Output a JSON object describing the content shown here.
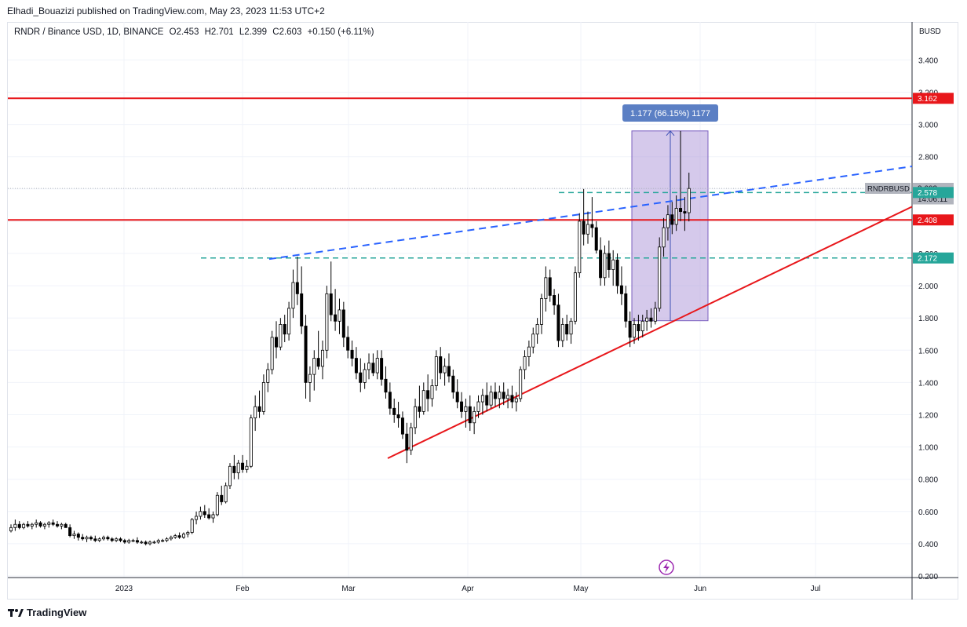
{
  "header": {
    "publish_line": "Elhadi_Bouazizi published on TradingView.com, May 23, 2023 11:53 UTC+2"
  },
  "legend": {
    "symbol": "RNDR / Binance USD, 1D, BINANCE",
    "open": "O2.453",
    "high": "H2.701",
    "low": "L2.399",
    "close": "C2.603",
    "change": "+0.150 (+6.11%)"
  },
  "footer": {
    "brand": "TradingView"
  },
  "colors": {
    "up": "#ffffff",
    "down": "#000000",
    "resistance": "#e8171b",
    "dashed_green": "#26a69a",
    "trend_blue": "#2962ff",
    "measure_fill": "#b39ddb",
    "measure_label_bg": "#5b7fc4"
  },
  "chart_data": {
    "type": "candlestick",
    "currency": "BUSD",
    "ylim": [
      0.2,
      3.5
    ],
    "y_ticks": [
      "3.400",
      "3.200",
      "3.000",
      "2.800",
      "2.600",
      "2.400",
      "2.200",
      "2.000",
      "1.800",
      "1.600",
      "1.400",
      "1.200",
      "1.000",
      "0.800",
      "0.600",
      "0.400",
      "0.200"
    ],
    "x_ticks": [
      "2023",
      "Feb",
      "Mar",
      "Apr",
      "May",
      "Jun",
      "Jul"
    ],
    "price_labels": [
      {
        "text": "3.162",
        "value": 3.162,
        "color": "#e8171b"
      },
      {
        "text": "2.603",
        "value": 2.603,
        "color": "#b2b5be"
      },
      {
        "text": "14:06:11",
        "value": 2.535,
        "color": "#b2b5be"
      },
      {
        "text": "2.578",
        "value": 2.578,
        "color": "#26a69a"
      },
      {
        "text": "2.408",
        "value": 2.408,
        "color": "#e8171b"
      },
      {
        "text": "2.172",
        "value": 2.172,
        "color": "#26a69a"
      }
    ],
    "symbol_tag": "RNDRBUSD",
    "measure_label": "1.177 (66.15%) 1177",
    "candles": [
      [
        0.48,
        0.52,
        0.47,
        0.5
      ],
      [
        0.5,
        0.55,
        0.48,
        0.52
      ],
      [
        0.52,
        0.54,
        0.49,
        0.5
      ],
      [
        0.5,
        0.53,
        0.49,
        0.52
      ],
      [
        0.52,
        0.54,
        0.5,
        0.51
      ],
      [
        0.51,
        0.53,
        0.49,
        0.52
      ],
      [
        0.52,
        0.55,
        0.5,
        0.53
      ],
      [
        0.53,
        0.54,
        0.5,
        0.51
      ],
      [
        0.51,
        0.53,
        0.49,
        0.52
      ],
      [
        0.52,
        0.54,
        0.5,
        0.53
      ],
      [
        0.53,
        0.55,
        0.51,
        0.52
      ],
      [
        0.52,
        0.54,
        0.5,
        0.51
      ],
      [
        0.51,
        0.53,
        0.49,
        0.52
      ],
      [
        0.52,
        0.53,
        0.5,
        0.5
      ],
      [
        0.5,
        0.52,
        0.44,
        0.45
      ],
      [
        0.45,
        0.48,
        0.43,
        0.46
      ],
      [
        0.46,
        0.47,
        0.42,
        0.44
      ],
      [
        0.44,
        0.46,
        0.42,
        0.43
      ],
      [
        0.43,
        0.45,
        0.41,
        0.44
      ],
      [
        0.44,
        0.45,
        0.42,
        0.43
      ],
      [
        0.43,
        0.45,
        0.41,
        0.42
      ],
      [
        0.42,
        0.44,
        0.41,
        0.43
      ],
      [
        0.43,
        0.45,
        0.42,
        0.44
      ],
      [
        0.44,
        0.45,
        0.42,
        0.43
      ],
      [
        0.43,
        0.44,
        0.41,
        0.42
      ],
      [
        0.42,
        0.44,
        0.41,
        0.43
      ],
      [
        0.43,
        0.44,
        0.41,
        0.42
      ],
      [
        0.42,
        0.43,
        0.4,
        0.41
      ],
      [
        0.41,
        0.43,
        0.4,
        0.42
      ],
      [
        0.42,
        0.43,
        0.41,
        0.42
      ],
      [
        0.42,
        0.44,
        0.4,
        0.41
      ],
      [
        0.41,
        0.42,
        0.4,
        0.41
      ],
      [
        0.41,
        0.42,
        0.39,
        0.4
      ],
      [
        0.4,
        0.42,
        0.39,
        0.41
      ],
      [
        0.41,
        0.42,
        0.4,
        0.41
      ],
      [
        0.41,
        0.43,
        0.4,
        0.42
      ],
      [
        0.42,
        0.43,
        0.41,
        0.42
      ],
      [
        0.42,
        0.44,
        0.41,
        0.43
      ],
      [
        0.43,
        0.45,
        0.42,
        0.44
      ],
      [
        0.44,
        0.46,
        0.43,
        0.45
      ],
      [
        0.45,
        0.47,
        0.43,
        0.44
      ],
      [
        0.44,
        0.47,
        0.43,
        0.46
      ],
      [
        0.46,
        0.48,
        0.44,
        0.47
      ],
      [
        0.47,
        0.56,
        0.46,
        0.55
      ],
      [
        0.55,
        0.6,
        0.52,
        0.57
      ],
      [
        0.57,
        0.63,
        0.55,
        0.6
      ],
      [
        0.6,
        0.64,
        0.56,
        0.58
      ],
      [
        0.58,
        0.62,
        0.55,
        0.56
      ],
      [
        0.56,
        0.6,
        0.53,
        0.58
      ],
      [
        0.58,
        0.72,
        0.57,
        0.7
      ],
      [
        0.7,
        0.76,
        0.64,
        0.66
      ],
      [
        0.66,
        0.78,
        0.65,
        0.76
      ],
      [
        0.76,
        0.9,
        0.74,
        0.88
      ],
      [
        0.88,
        0.95,
        0.8,
        0.84
      ],
      [
        0.84,
        0.92,
        0.8,
        0.9
      ],
      [
        0.9,
        0.95,
        0.84,
        0.86
      ],
      [
        0.86,
        0.92,
        0.84,
        0.88
      ],
      [
        0.88,
        1.2,
        0.87,
        1.18
      ],
      [
        1.18,
        1.32,
        1.1,
        1.25
      ],
      [
        1.25,
        1.35,
        1.18,
        1.22
      ],
      [
        1.22,
        1.45,
        1.2,
        1.4
      ],
      [
        1.4,
        1.52,
        1.34,
        1.48
      ],
      [
        1.48,
        1.72,
        1.45,
        1.68
      ],
      [
        1.68,
        1.78,
        1.55,
        1.62
      ],
      [
        1.62,
        1.8,
        1.6,
        1.76
      ],
      [
        1.76,
        1.82,
        1.65,
        1.7
      ],
      [
        1.7,
        1.9,
        1.66,
        1.86
      ],
      [
        1.86,
        2.1,
        1.8,
        2.02
      ],
      [
        2.02,
        2.18,
        1.88,
        1.95
      ],
      [
        1.95,
        2.12,
        1.7,
        1.75
      ],
      [
        1.75,
        1.82,
        1.3,
        1.4
      ],
      [
        1.4,
        1.5,
        1.28,
        1.45
      ],
      [
        1.45,
        1.6,
        1.35,
        1.55
      ],
      [
        1.55,
        1.72,
        1.48,
        1.5
      ],
      [
        1.5,
        1.66,
        1.42,
        1.6
      ],
      [
        1.6,
        2.0,
        1.55,
        1.95
      ],
      [
        1.95,
        2.15,
        1.78,
        1.82
      ],
      [
        1.82,
        1.98,
        1.72,
        1.78
      ],
      [
        1.78,
        1.92,
        1.7,
        1.85
      ],
      [
        1.85,
        1.9,
        1.62,
        1.68
      ],
      [
        1.68,
        1.75,
        1.55,
        1.6
      ],
      [
        1.6,
        1.66,
        1.5,
        1.55
      ],
      [
        1.55,
        1.62,
        1.42,
        1.46
      ],
      [
        1.46,
        1.55,
        1.34,
        1.4
      ],
      [
        1.4,
        1.52,
        1.36,
        1.48
      ],
      [
        1.48,
        1.58,
        1.42,
        1.52
      ],
      [
        1.52,
        1.58,
        1.44,
        1.46
      ],
      [
        1.46,
        1.6,
        1.42,
        1.55
      ],
      [
        1.55,
        1.6,
        1.38,
        1.42
      ],
      [
        1.42,
        1.5,
        1.3,
        1.34
      ],
      [
        1.34,
        1.4,
        1.2,
        1.24
      ],
      [
        1.24,
        1.3,
        1.15,
        1.2
      ],
      [
        1.2,
        1.28,
        1.12,
        1.18
      ],
      [
        1.18,
        1.22,
        1.05,
        1.08
      ],
      [
        1.08,
        1.15,
        0.9,
        0.98
      ],
      [
        0.98,
        1.15,
        0.95,
        1.12
      ],
      [
        1.12,
        1.3,
        1.08,
        1.25
      ],
      [
        1.25,
        1.38,
        1.18,
        1.22
      ],
      [
        1.22,
        1.4,
        1.2,
        1.35
      ],
      [
        1.35,
        1.45,
        1.22,
        1.3
      ],
      [
        1.3,
        1.42,
        1.25,
        1.38
      ],
      [
        1.38,
        1.6,
        1.35,
        1.56
      ],
      [
        1.56,
        1.62,
        1.42,
        1.46
      ],
      [
        1.46,
        1.55,
        1.38,
        1.5
      ],
      [
        1.5,
        1.58,
        1.4,
        1.44
      ],
      [
        1.44,
        1.48,
        1.3,
        1.34
      ],
      [
        1.34,
        1.42,
        1.24,
        1.28
      ],
      [
        1.28,
        1.34,
        1.18,
        1.22
      ],
      [
        1.22,
        1.3,
        1.12,
        1.25
      ],
      [
        1.25,
        1.32,
        1.1,
        1.15
      ],
      [
        1.15,
        1.25,
        1.08,
        1.22
      ],
      [
        1.22,
        1.32,
        1.18,
        1.28
      ],
      [
        1.28,
        1.36,
        1.2,
        1.32
      ],
      [
        1.32,
        1.4,
        1.22,
        1.26
      ],
      [
        1.26,
        1.38,
        1.24,
        1.34
      ],
      [
        1.34,
        1.4,
        1.25,
        1.3
      ],
      [
        1.3,
        1.38,
        1.24,
        1.34
      ],
      [
        1.34,
        1.4,
        1.26,
        1.3
      ],
      [
        1.3,
        1.36,
        1.24,
        1.32
      ],
      [
        1.32,
        1.38,
        1.24,
        1.28
      ],
      [
        1.28,
        1.34,
        1.22,
        1.3
      ],
      [
        1.3,
        1.5,
        1.28,
        1.48
      ],
      [
        1.48,
        1.6,
        1.42,
        1.56
      ],
      [
        1.56,
        1.66,
        1.5,
        1.62
      ],
      [
        1.62,
        1.74,
        1.58,
        1.7
      ],
      [
        1.7,
        1.8,
        1.64,
        1.76
      ],
      [
        1.76,
        1.95,
        1.7,
        1.92
      ],
      [
        1.92,
        2.12,
        1.84,
        2.05
      ],
      [
        2.05,
        2.1,
        1.9,
        1.94
      ],
      [
        1.94,
        1.98,
        1.82,
        1.88
      ],
      [
        1.88,
        1.95,
        1.62,
        1.66
      ],
      [
        1.66,
        1.8,
        1.62,
        1.76
      ],
      [
        1.76,
        1.82,
        1.66,
        1.7
      ],
      [
        1.7,
        1.8,
        1.64,
        1.78
      ],
      [
        1.78,
        2.12,
        1.76,
        2.08
      ],
      [
        2.08,
        2.45,
        2.05,
        2.4
      ],
      [
        2.4,
        2.6,
        2.25,
        2.32
      ],
      [
        2.32,
        2.46,
        2.26,
        2.38
      ],
      [
        2.38,
        2.55,
        2.3,
        2.36
      ],
      [
        2.36,
        2.4,
        2.2,
        2.22
      ],
      [
        2.22,
        2.3,
        2.0,
        2.05
      ],
      [
        2.05,
        2.25,
        2.0,
        2.2
      ],
      [
        2.2,
        2.28,
        2.05,
        2.1
      ],
      [
        2.1,
        2.22,
        2.0,
        2.16
      ],
      [
        2.16,
        2.2,
        1.95,
        2.0
      ],
      [
        2.0,
        2.12,
        1.88,
        1.95
      ],
      [
        1.95,
        2.0,
        1.74,
        1.78
      ],
      [
        1.78,
        1.84,
        1.62,
        1.68
      ],
      [
        1.68,
        1.8,
        1.64,
        1.76
      ],
      [
        1.76,
        1.82,
        1.66,
        1.72
      ],
      [
        1.72,
        1.82,
        1.68,
        1.78
      ],
      [
        1.78,
        1.85,
        1.72,
        1.8
      ],
      [
        1.8,
        1.86,
        1.74,
        1.78
      ],
      [
        1.78,
        1.9,
        1.76,
        1.86
      ],
      [
        1.86,
        2.3,
        1.84,
        2.24
      ],
      [
        2.24,
        2.42,
        2.18,
        2.36
      ],
      [
        2.36,
        2.5,
        2.28,
        2.44
      ],
      [
        2.44,
        2.52,
        2.32,
        2.38
      ],
      [
        2.38,
        2.56,
        2.34,
        2.48
      ],
      [
        2.48,
        2.96,
        2.4,
        2.46
      ],
      [
        2.46,
        2.55,
        2.34,
        2.45
      ],
      [
        2.453,
        2.701,
        2.399,
        2.603
      ]
    ]
  }
}
